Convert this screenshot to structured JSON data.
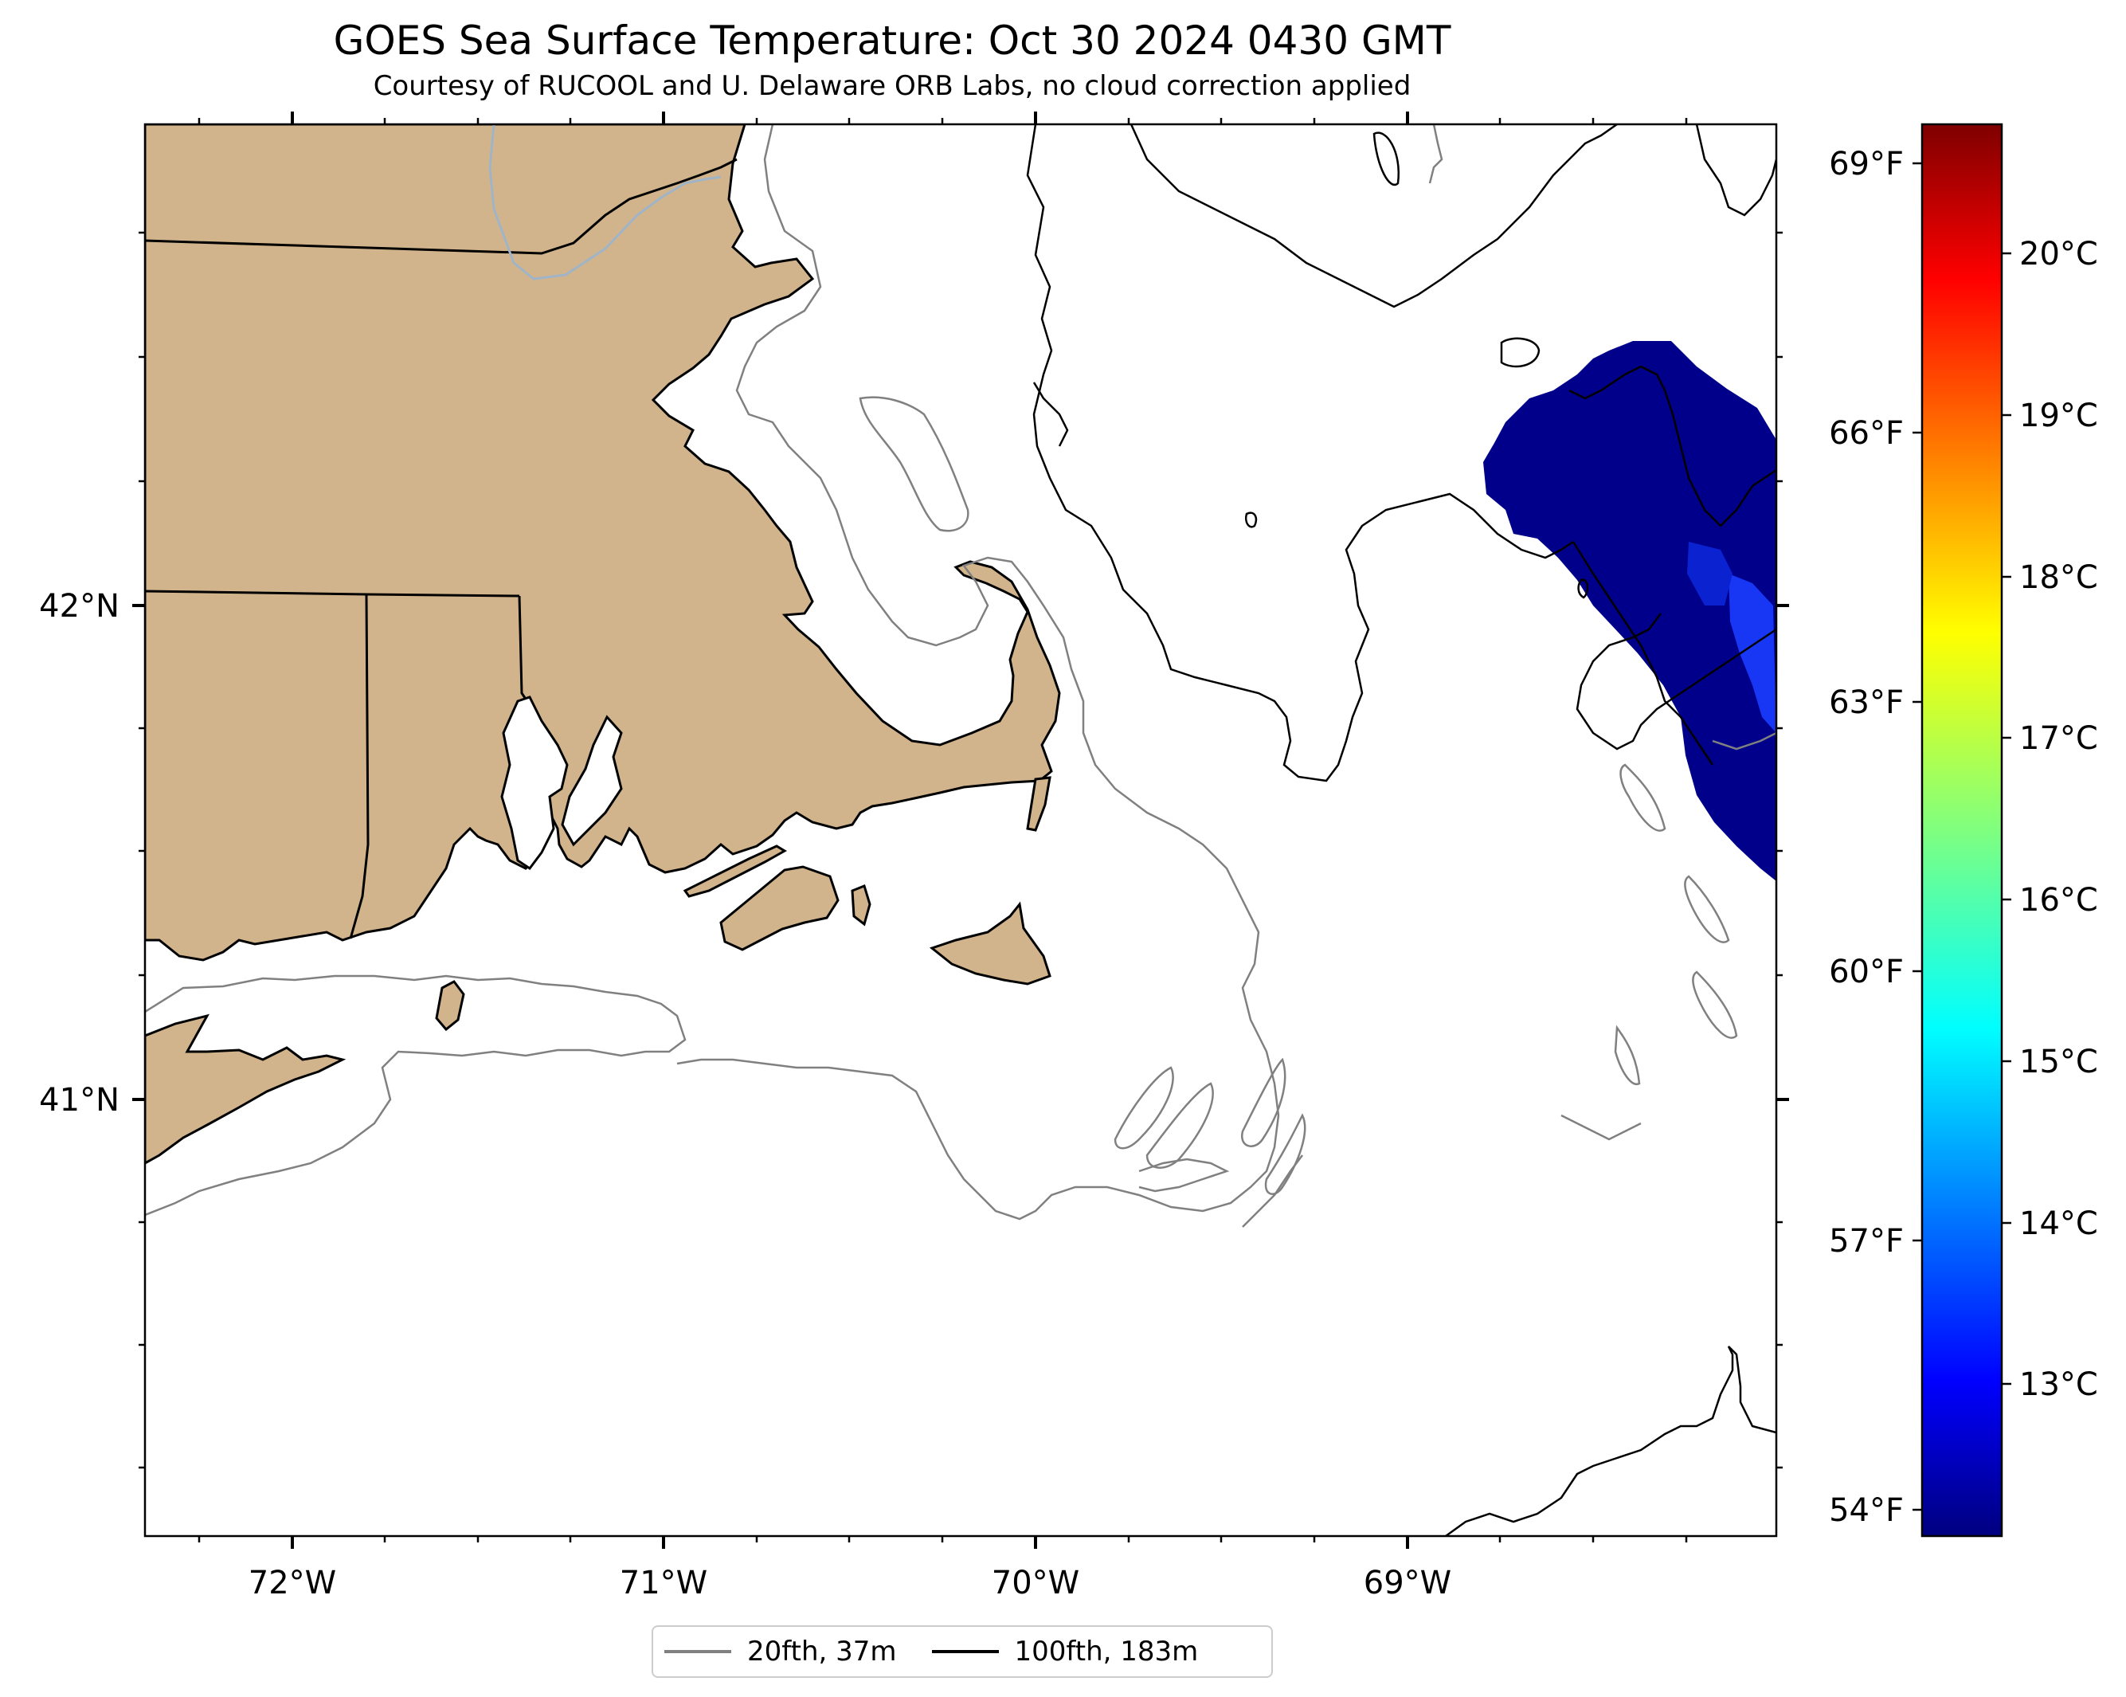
{
  "title": "GOES Sea Surface Temperature: Oct 30 2024 0430 GMT",
  "subtitle": "Courtesy of RUCOOL and U. Delaware ORB Labs, no cloud correction applied",
  "map": {
    "lon_ticks": [
      "72°W",
      "71°W",
      "70°W",
      "69°W"
    ],
    "lat_ticks": [
      "42°N",
      "41°N"
    ],
    "land_color": "#d2b48c",
    "sst_patch_color": "#00008b"
  },
  "colorbar": {
    "colormap": "jet",
    "fahrenheit_ticks": [
      "69°F",
      "66°F",
      "63°F",
      "60°F",
      "57°F",
      "54°F"
    ],
    "celsius_ticks": [
      "20°C",
      "19°C",
      "18°C",
      "17°C",
      "16°C",
      "15°C",
      "14°C",
      "13°C"
    ]
  },
  "legend": {
    "items": [
      {
        "label": "20fth, 37m",
        "color": "#808080"
      },
      {
        "label": "100fth, 183m",
        "color": "#000000"
      }
    ]
  }
}
